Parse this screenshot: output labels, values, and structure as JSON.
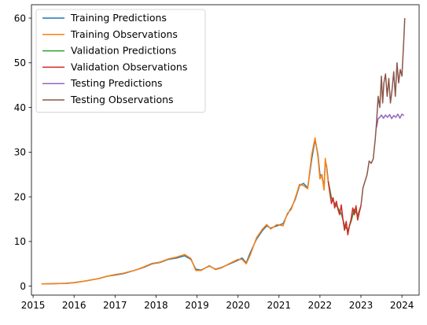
{
  "chart_data": {
    "type": "line",
    "title": "",
    "xlabel": "",
    "ylabel": "",
    "xlim": [
      2014.96,
      2024.42
    ],
    "ylim": [
      -2,
      63
    ],
    "xticks": [
      2015,
      2016,
      2017,
      2018,
      2019,
      2020,
      2021,
      2022,
      2023,
      2024
    ],
    "xtick_labels": [
      "2015",
      "2016",
      "2017",
      "2018",
      "2019",
      "2020",
      "2021",
      "2022",
      "2023",
      "2024"
    ],
    "yticks": [
      0,
      10,
      20,
      30,
      40,
      50,
      60
    ],
    "ytick_labels": [
      "0",
      "10",
      "20",
      "30",
      "40",
      "50",
      "60"
    ],
    "grid": false,
    "legend_position": "top-left",
    "series": [
      {
        "name": "Training Predictions",
        "color": "#1f77b4",
        "x": [
          2015.2,
          2015.5,
          2015.8,
          2016.0,
          2016.3,
          2016.6,
          2016.8,
          2017.0,
          2017.2,
          2017.5,
          2017.7,
          2017.9,
          2018.1,
          2018.3,
          2018.5,
          2018.7,
          2018.85,
          2018.97,
          2019.1,
          2019.3,
          2019.45,
          2019.6,
          2019.8,
          2020.0,
          2020.1,
          2020.2,
          2020.3,
          2020.45,
          2020.6,
          2020.7,
          2020.8,
          2020.95,
          2021.1,
          2021.2,
          2021.3,
          2021.4,
          2021.5,
          2021.6,
          2021.7,
          2021.8,
          2021.88,
          2021.95,
          2022.0,
          2022.05,
          2022.1,
          2022.13,
          2022.16,
          2022.2
        ],
        "y": [
          0.5,
          0.55,
          0.65,
          0.8,
          1.2,
          1.7,
          2.2,
          2.5,
          2.8,
          3.6,
          4.2,
          5.0,
          5.3,
          6.0,
          6.3,
          6.8,
          6.0,
          3.8,
          3.6,
          4.5,
          3.8,
          4.2,
          5.0,
          5.8,
          6.3,
          5.2,
          7.5,
          10.5,
          12.5,
          13.5,
          13.0,
          13.5,
          14.0,
          16.0,
          17.5,
          19.5,
          22.5,
          23.0,
          22.0,
          28.5,
          32.8,
          29.5,
          25.0,
          24.5,
          22.0,
          28.0,
          27.0,
          23.8
        ]
      },
      {
        "name": "Training Observations",
        "color": "#ff7f0e",
        "x": [
          2015.2,
          2015.5,
          2015.8,
          2016.0,
          2016.3,
          2016.6,
          2016.8,
          2017.0,
          2017.2,
          2017.5,
          2017.7,
          2017.9,
          2018.1,
          2018.3,
          2018.5,
          2018.7,
          2018.85,
          2018.97,
          2019.1,
          2019.3,
          2019.45,
          2019.6,
          2019.8,
          2020.0,
          2020.1,
          2020.2,
          2020.3,
          2020.45,
          2020.6,
          2020.7,
          2020.8,
          2020.95,
          2021.1,
          2021.2,
          2021.3,
          2021.4,
          2021.5,
          2021.6,
          2021.7,
          2021.8,
          2021.88,
          2021.95,
          2022.0,
          2022.05,
          2022.1,
          2022.13,
          2022.16,
          2022.2
        ],
        "y": [
          0.5,
          0.55,
          0.6,
          0.75,
          1.2,
          1.7,
          2.2,
          2.6,
          2.9,
          3.6,
          4.3,
          5.1,
          5.4,
          6.1,
          6.5,
          7.1,
          6.2,
          3.5,
          3.5,
          4.6,
          3.7,
          4.1,
          5.1,
          6.0,
          6.0,
          5.0,
          7.0,
          10.8,
          12.8,
          13.8,
          12.8,
          13.8,
          13.5,
          16.2,
          17.2,
          19.8,
          22.8,
          22.5,
          21.8,
          29.5,
          33.2,
          29.0,
          24.0,
          25.0,
          21.5,
          28.6,
          26.5,
          23.5
        ]
      },
      {
        "name": "Validation Predictions",
        "color": "#2ca02c",
        "x": [
          2022.2,
          2022.28,
          2022.36,
          2022.44,
          2022.52,
          2022.6,
          2022.68,
          2022.76,
          2022.84,
          2022.92,
          2023.0
        ],
        "y": [
          23.6,
          19.8,
          18.5,
          17.5,
          16.2,
          13.6,
          12.5,
          14.5,
          17.2,
          15.8,
          18.0
        ]
      },
      {
        "name": "Validation Observations",
        "color": "#d62728",
        "x": [
          2022.2,
          2022.24,
          2022.28,
          2022.32,
          2022.36,
          2022.4,
          2022.44,
          2022.48,
          2022.52,
          2022.56,
          2022.6,
          2022.64,
          2022.68,
          2022.72,
          2022.76,
          2022.8,
          2022.84,
          2022.88,
          2022.92,
          2022.96,
          2023.0
        ],
        "y": [
          23.5,
          21.0,
          18.5,
          19.8,
          17.5,
          19.0,
          17.2,
          16.0,
          18.2,
          15.0,
          12.5,
          14.5,
          11.5,
          13.5,
          15.0,
          17.5,
          16.0,
          18.0,
          14.8,
          16.5,
          18.0
        ]
      },
      {
        "name": "Testing Predictions",
        "color": "#9467bd",
        "x": [
          2023.38,
          2023.42,
          2023.46,
          2023.5,
          2023.55,
          2023.6,
          2023.65,
          2023.7,
          2023.75,
          2023.8,
          2023.85,
          2023.9,
          2023.95,
          2024.0,
          2024.05
        ],
        "y": [
          35.5,
          37.5,
          37.8,
          38.3,
          37.6,
          38.3,
          37.8,
          38.4,
          37.5,
          38.2,
          37.8,
          38.5,
          37.6,
          38.5,
          38.2
        ]
      },
      {
        "name": "Testing Observations",
        "color": "#8c564b",
        "x": [
          2023.0,
          2023.05,
          2023.1,
          2023.15,
          2023.2,
          2023.25,
          2023.3,
          2023.35,
          2023.38,
          2023.42,
          2023.46,
          2023.5,
          2023.53,
          2023.56,
          2023.6,
          2023.64,
          2023.68,
          2023.72,
          2023.76,
          2023.8,
          2023.84,
          2023.88,
          2023.92,
          2023.96,
          2024.0,
          2024.04,
          2024.07
        ],
        "y": [
          18.0,
          22.0,
          23.5,
          25.0,
          28.0,
          27.5,
          28.5,
          33.0,
          36.5,
          42.5,
          40.0,
          47.0,
          41.0,
          45.5,
          47.5,
          42.5,
          46.5,
          41.0,
          44.0,
          48.0,
          42.5,
          50.0,
          45.5,
          48.5,
          47.0,
          54.0,
          60.0
        ]
      }
    ]
  }
}
